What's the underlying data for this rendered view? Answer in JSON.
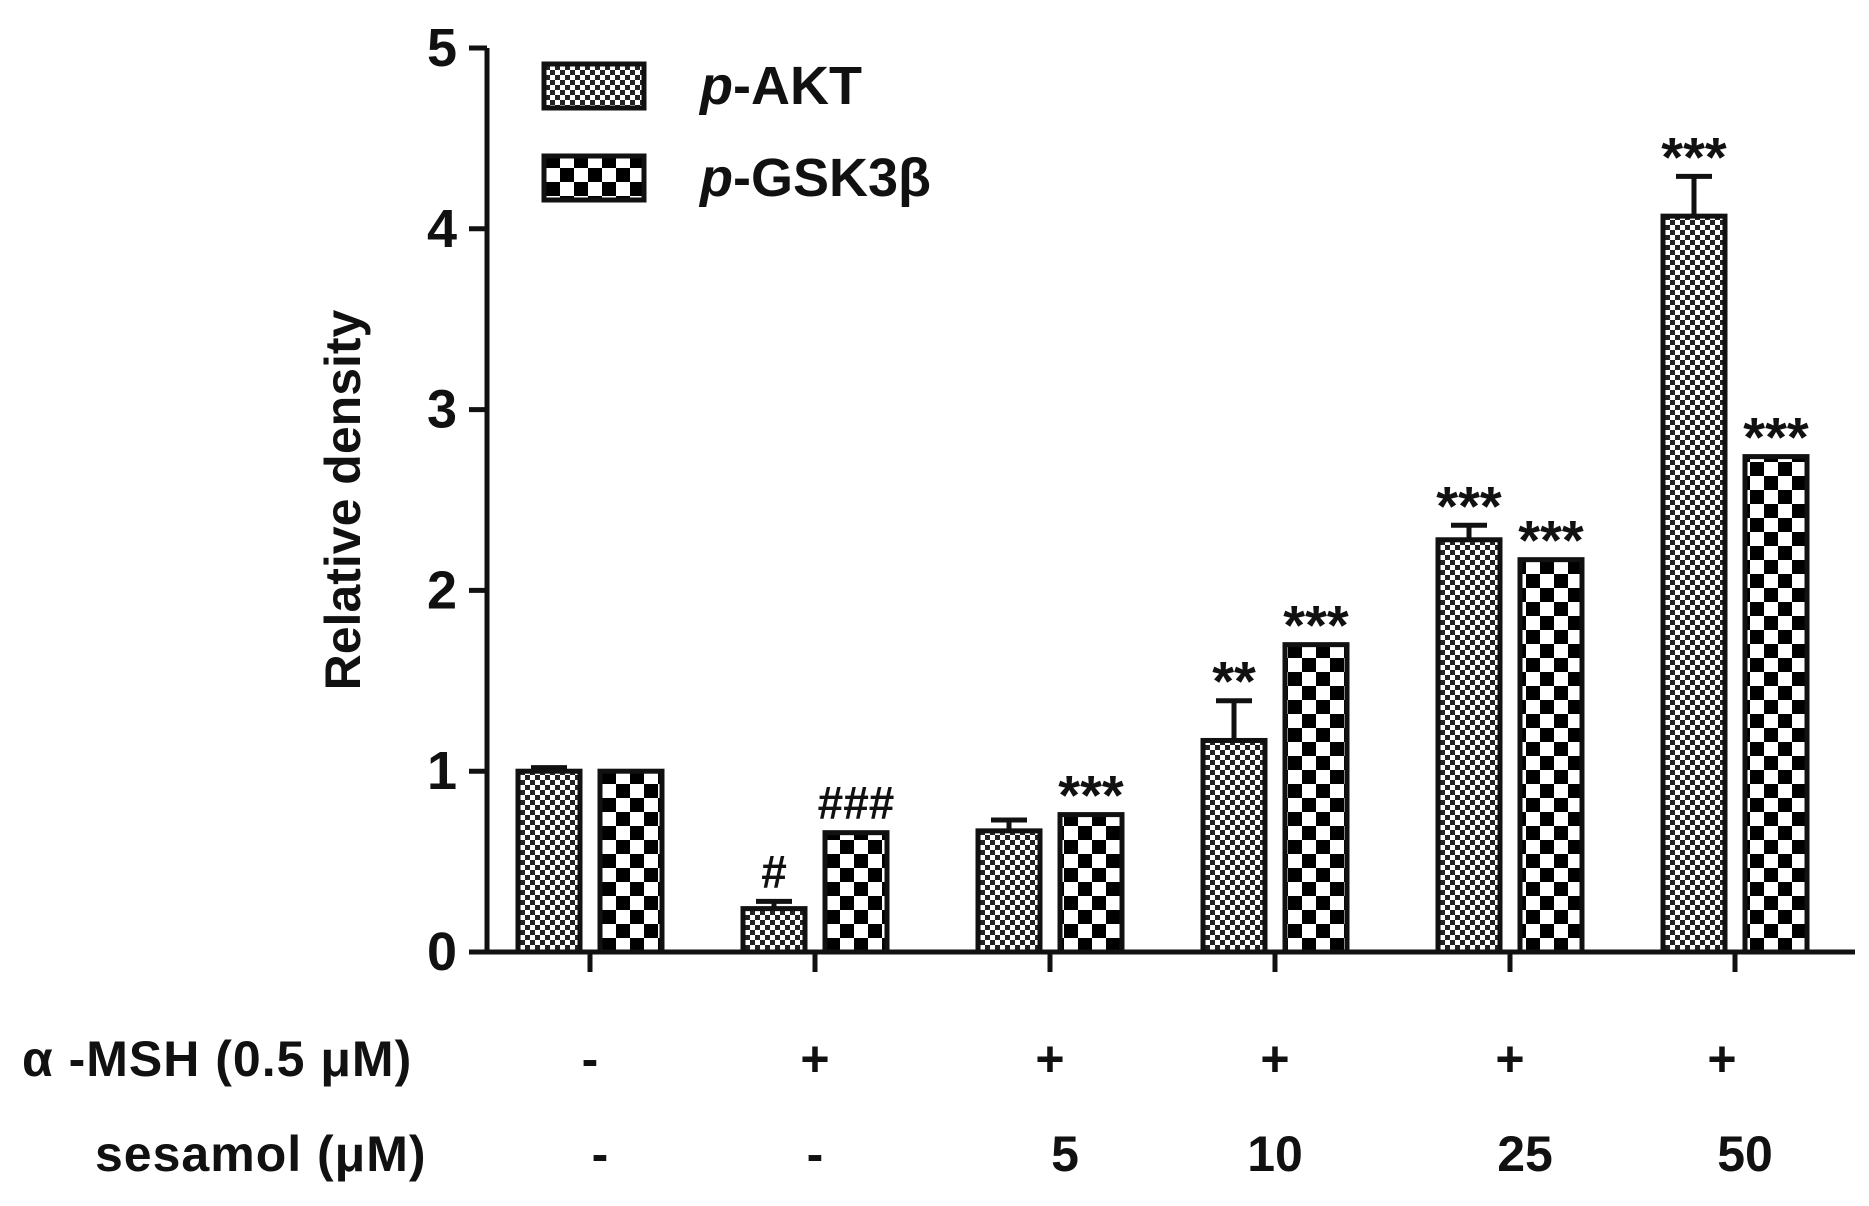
{
  "chart_data": {
    "type": "bar",
    "ylabel": "Relative density",
    "ylim": [
      0,
      5
    ],
    "yticks": [
      "0",
      "1",
      "2",
      "3",
      "4",
      "5"
    ],
    "group_count": 6,
    "series": [
      {
        "name": "p-AKT",
        "name_italic": "p",
        "name_rest": "-AKT",
        "pattern": "fine-checker",
        "values": [
          1.0,
          0.24,
          0.67,
          1.17,
          2.28,
          4.07
        ],
        "errors": [
          0.02,
          0.04,
          0.06,
          0.22,
          0.08,
          0.22
        ],
        "annotations": [
          "",
          "#",
          "",
          "**",
          "***",
          "***"
        ]
      },
      {
        "name": "p-GSK3β",
        "name_italic": "p",
        "name_rest": "-GSK3β",
        "pattern": "coarse-checker",
        "values": [
          1.0,
          0.66,
          0.76,
          1.7,
          2.17,
          2.74
        ],
        "errors": [
          0.0,
          0.0,
          0.0,
          0.0,
          0.0,
          0.0
        ],
        "annotations": [
          "",
          "###",
          "***",
          "***",
          "***",
          "***"
        ]
      }
    ],
    "legend_position": "top-left",
    "conditions": [
      {
        "label": "α -MSH (0.5 μM)",
        "values": [
          "-",
          "+",
          "+",
          "+",
          "+",
          "+"
        ]
      },
      {
        "label": "sesamol (μM)",
        "values": [
          "-",
          "-",
          "5",
          "10",
          "25",
          "50"
        ]
      }
    ]
  }
}
